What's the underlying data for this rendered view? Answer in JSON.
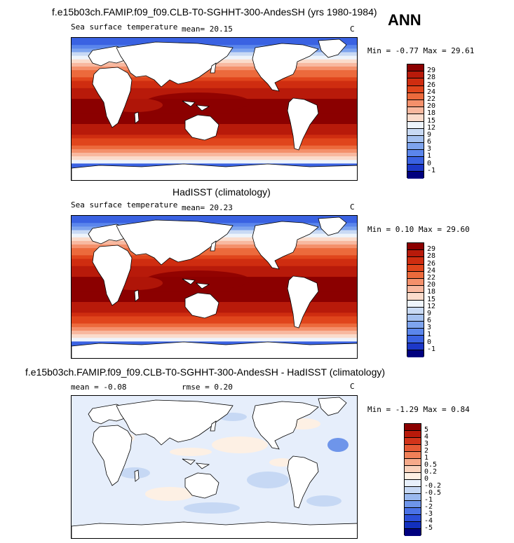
{
  "season": "ANN",
  "panels": [
    {
      "title": "f.e15b03ch.FAMIP.f09_f09.CLB-T0-SGHHT-300-AndesSH (yrs 1980-1984)",
      "variable": "Sea surface temperature",
      "stats": "mean=  20.15",
      "units": "C",
      "minmax": "Min =  -0.77 Max =  29.61",
      "colorbar": {
        "labels": [
          "29",
          "28",
          "26",
          "24",
          "22",
          "20",
          "18",
          "15",
          "12",
          "9",
          "6",
          "3",
          "1",
          "0",
          "-1"
        ],
        "colors": [
          "#8b0000",
          "#b81a0a",
          "#cf2d10",
          "#e0451c",
          "#ec6a3c",
          "#f4906b",
          "#f8b89f",
          "#fbdccc",
          "#eef4fb",
          "#c9daf4",
          "#a5c1f0",
          "#7ea4ee",
          "#5b86ec",
          "#3a62e2",
          "#1d38c8",
          "#00007f"
        ]
      }
    },
    {
      "title": "HadISST (climatology)",
      "variable": "Sea surface temperature",
      "stats": "mean=  20.23",
      "units": "C",
      "minmax": "Min =   0.10 Max =  29.60",
      "colorbar": {
        "labels": [
          "29",
          "28",
          "26",
          "24",
          "22",
          "20",
          "18",
          "15",
          "12",
          "9",
          "6",
          "3",
          "1",
          "0",
          "-1"
        ],
        "colors": [
          "#8b0000",
          "#b81a0a",
          "#cf2d10",
          "#e0451c",
          "#ec6a3c",
          "#f4906b",
          "#f8b89f",
          "#fbdccc",
          "#eef4fb",
          "#c9daf4",
          "#a5c1f0",
          "#7ea4ee",
          "#5b86ec",
          "#3a62e2",
          "#1d38c8",
          "#00007f"
        ]
      }
    },
    {
      "title": "f.e15b03ch.FAMIP.f09_f09.CLB-T0-SGHHT-300-AndesSH - HadISST (climatology)",
      "stats_mean": "mean =  -0.08",
      "stats_rmse": "rmse =   0.20",
      "units": "C",
      "minmax": "Min =  -1.29 Max =   0.84",
      "colorbar": {
        "labels": [
          "5",
          "4",
          "3",
          "2",
          "1",
          "0.5",
          "0.2",
          "0",
          "-0.2",
          "-0.5",
          "-1",
          "-2",
          "-3",
          "-4",
          "-5"
        ],
        "colors": [
          "#8b0000",
          "#b81a0a",
          "#d2341a",
          "#e65a35",
          "#f08058",
          "#f6aa8a",
          "#f9d2bc",
          "#fdf0e4",
          "#e8f0fb",
          "#c6d8f4",
          "#9ab9ef",
          "#6e95ea",
          "#4a72e6",
          "#2b4ed8",
          "#1230bf",
          "#00007f"
        ]
      }
    }
  ]
}
